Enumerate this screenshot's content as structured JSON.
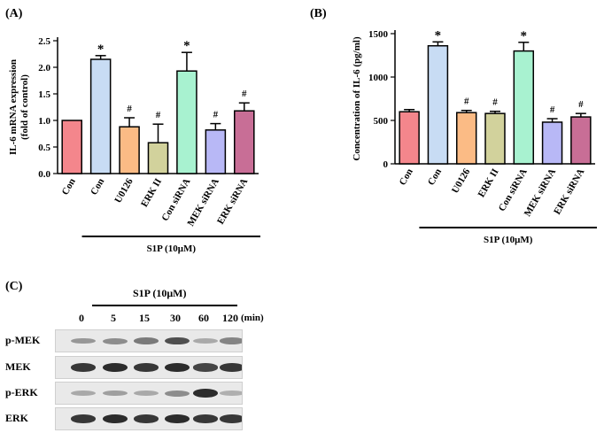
{
  "panels": {
    "a": "(A)",
    "b": "(B)",
    "c": "(C)"
  },
  "chart_data": [
    {
      "type": "bar",
      "panel": "(A)",
      "ylabel": "IL-6 mRNA expression",
      "ylabel2": "(fold of control)",
      "ylim": [
        0,
        2.5
      ],
      "yticks": [
        "0.0",
        "0.5",
        "1.0",
        "1.5",
        "2.0",
        "2.5"
      ],
      "categories": [
        "Con",
        "Con",
        "U0126",
        "ERK II",
        "Con siRNA",
        "MEK siRNA",
        "ERK siRNA"
      ],
      "values": [
        1.0,
        2.15,
        0.88,
        0.58,
        1.93,
        0.82,
        1.18
      ],
      "errors": [
        0.0,
        0.07,
        0.17,
        0.35,
        0.35,
        0.12,
        0.15
      ],
      "marks": [
        "",
        "*",
        "#",
        "#",
        "*",
        "#",
        "#"
      ],
      "colors": [
        "#f4868c",
        "#c8dcf4",
        "#fbbb85",
        "#d2d29c",
        "#a8f2d0",
        "#b8b8f6",
        "#c86e96"
      ],
      "treatment_label": "S1P (10μM)"
    },
    {
      "type": "bar",
      "panel": "(B)",
      "ylabel": "Concentration of IL-6 (pg/ml)",
      "ylim": [
        0,
        1500
      ],
      "yticks": [
        "0",
        "500",
        "1000",
        "1500"
      ],
      "categories": [
        "Con",
        "Con",
        "U0126",
        "ERK II",
        "Con siRNA",
        "MEK siRNA",
        "ERK siRNA"
      ],
      "values": [
        600,
        1360,
        590,
        580,
        1300,
        480,
        540
      ],
      "errors": [
        25,
        45,
        25,
        25,
        100,
        40,
        40
      ],
      "marks": [
        "",
        "*",
        "#",
        "#",
        "*",
        "#",
        "#"
      ],
      "colors": [
        "#f4868c",
        "#c8dcf4",
        "#fbbb85",
        "#d2d29c",
        "#a8f2d0",
        "#b8b8f6",
        "#c86e96"
      ],
      "treatment_label": "S1P (10μM)"
    }
  ],
  "blot": {
    "treatment_label": "S1P (10μM)",
    "timepoints": [
      "0",
      "5",
      "15",
      "30",
      "60",
      "120"
    ],
    "time_unit": "(min)",
    "rows": [
      {
        "label": "p-MEK",
        "intensity": [
          0.45,
          0.5,
          0.6,
          0.8,
          0.35,
          0.55
        ]
      },
      {
        "label": "MEK",
        "intensity": [
          0.9,
          0.95,
          0.9,
          0.95,
          0.85,
          0.9
        ]
      },
      {
        "label": "p-ERK",
        "intensity": [
          0.35,
          0.4,
          0.35,
          0.5,
          0.95,
          0.3
        ]
      },
      {
        "label": "ERK",
        "intensity": [
          0.9,
          0.95,
          0.9,
          0.95,
          0.9,
          0.9
        ]
      }
    ]
  }
}
